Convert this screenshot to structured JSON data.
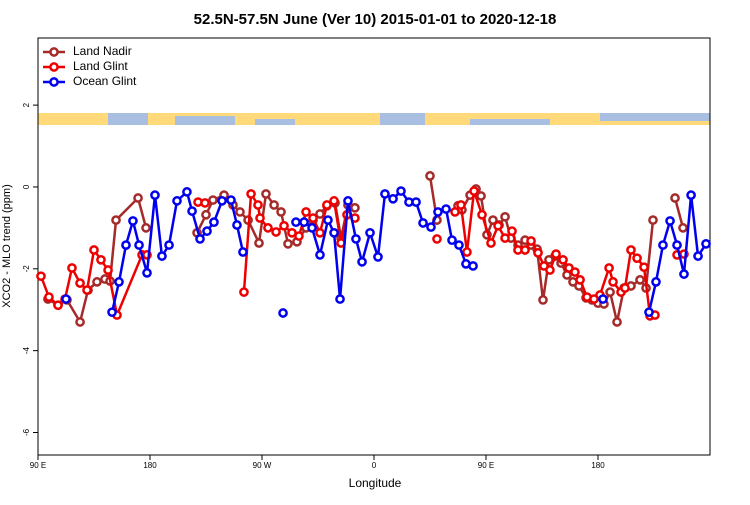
{
  "chart_data": {
    "type": "line",
    "title": "52.5N-57.5N June (Ver 10)   2015-01-01 to 2020-12-18",
    "x_label": "Longitude",
    "y_label": "XCO2 - MLO trend (ppm)",
    "xlim": [
      90,
      630
    ],
    "xticks": [
      {
        "value": 90,
        "label": "90 E"
      },
      {
        "value": 180,
        "label": "180"
      },
      {
        "value": 270,
        "label": "90 W"
      },
      {
        "value": 360,
        "label": "0"
      },
      {
        "value": 450,
        "label": "90 E"
      },
      {
        "value": 540,
        "label": "180"
      }
    ],
    "ylim": [
      -6.55,
      3.64
    ],
    "yticks": [
      2,
      0,
      -2,
      -4,
      -6
    ],
    "legend": "top-left",
    "series": [
      {
        "name": "Land Nadir",
        "color": "#a52a2a",
        "x": [
          98.0,
          106.1,
          113.3,
          123.8,
          130.2,
          137.4,
          143.8,
          147.9,
          152.7,
          170.4,
          176.8,
          null,
          217.8,
          225.0,
          230.6,
          239.5,
          246.7,
          252.3,
          258.8,
          267.6,
          273.2,
          279.7,
          285.3,
          290.9,
          298.1,
          305.4,
          311.0,
          316.6,
          322.2,
          328.7,
          333.5,
          339.1,
          344.7,
          null,
          405.0,
          410.6,
          null,
          427.5,
          430.7,
          437.2,
          442.0,
          446.0,
          450.8,
          455.6,
          460.5,
          465.3,
          470.1,
          475.7,
          481.4,
          486.2,
          491.0,
          495.8,
          500.6,
          505.5,
          510.3,
          515.1,
          519.9,
          524.7,
          530.4,
          535.2,
          540.0,
          544.8,
          549.7,
          555.3,
          560.9,
          566.5,
          573.8,
          578.6,
          584.2,
          null,
          601.9,
          608.3
        ],
        "values": [
          -2.74,
          -2.89,
          -2.76,
          -3.3,
          -2.52,
          -2.32,
          -2.25,
          -2.3,
          -0.81,
          -0.27,
          -1.0,
          null,
          -1.12,
          -0.68,
          -0.32,
          -0.2,
          -0.44,
          -0.61,
          -0.81,
          -1.37,
          -0.17,
          -0.44,
          -0.61,
          -1.39,
          -1.34,
          -1.0,
          -0.81,
          -0.66,
          -0.46,
          -0.39,
          -1.25,
          -0.44,
          -0.51,
          null,
          0.27,
          -0.81,
          null,
          -0.46,
          -0.56,
          -0.2,
          -0.05,
          -0.22,
          -1.17,
          -0.81,
          -0.93,
          -0.73,
          -1.25,
          -1.42,
          -1.3,
          -1.42,
          -1.52,
          -2.76,
          -1.78,
          -1.69,
          -1.86,
          -2.15,
          -2.32,
          -2.42,
          -2.71,
          -2.76,
          -2.84,
          -2.86,
          -2.57,
          -3.3,
          -2.47,
          -2.42,
          -2.27,
          -2.47,
          -0.81,
          null,
          -0.27,
          -1.0
        ]
      },
      {
        "name": "Land Glint",
        "color": "#ee0000",
        "x": [
          92.4,
          98.8,
          106.1,
          111.7,
          117.3,
          123.8,
          129.4,
          135.0,
          140.6,
          146.3,
          153.5,
          173.6,
          177.6,
          null,
          218.6,
          224.2,
          null,
          255.5,
          261.2,
          266.8,
          268.4,
          274.8,
          281.3,
          287.7,
          294.1,
          299.7,
          305.4,
          311.0,
          316.6,
          322.2,
          327.9,
          333.5,
          338.3,
          344.7,
          null,
          410.6,
          null,
          425.1,
          429.9,
          434.7,
          440.4,
          446.8,
          454.0,
          459.7,
          465.3,
          470.9,
          475.7,
          481.4,
          486.2,
          491.8,
          496.6,
          501.4,
          506.3,
          511.9,
          516.7,
          521.5,
          525.6,
          531.2,
          536.8,
          541.6,
          548.9,
          552.1,
          558.5,
          561.7,
          566.5,
          571.4,
          577.0,
          581.8,
          585.8,
          null,
          603.5,
          609.1
        ],
        "values": [
          -2.18,
          -2.69,
          -2.89,
          -2.74,
          -1.98,
          -2.35,
          -2.52,
          -1.54,
          -1.78,
          -2.03,
          -3.13,
          -1.66,
          -1.66,
          null,
          -0.37,
          -0.39,
          null,
          -2.57,
          -0.17,
          -0.44,
          -0.76,
          -1.0,
          -1.1,
          -0.95,
          -1.12,
          -1.2,
          -0.61,
          -0.76,
          -1.12,
          -0.44,
          -0.34,
          -1.37,
          -0.68,
          -0.76,
          null,
          -1.27,
          null,
          -0.61,
          -0.44,
          -1.59,
          -0.1,
          -0.68,
          -1.37,
          -0.95,
          -1.25,
          -1.08,
          -1.54,
          -1.54,
          -1.32,
          -1.61,
          -1.93,
          -2.03,
          -1.64,
          -1.78,
          -1.98,
          -2.08,
          -2.27,
          -2.69,
          -2.74,
          -2.64,
          -1.98,
          -2.32,
          -2.57,
          -2.47,
          -1.54,
          -1.74,
          -1.96,
          -3.15,
          -3.13,
          null,
          -1.66,
          -1.64
        ]
      },
      {
        "name": "Ocean Glint",
        "color": "#0000ee",
        "x": [
          112.5,
          null,
          149.5,
          155.1,
          160.7,
          166.3,
          171.2,
          177.6,
          184.0,
          189.6,
          195.3,
          201.7,
          209.7,
          213.8,
          220.2,
          225.8,
          231.4,
          237.9,
          245.1,
          249.9,
          254.7,
          null,
          286.9,
          null,
          297.3,
          303.8,
          310.2,
          316.6,
          323.0,
          327.9,
          332.7,
          339.1,
          345.5,
          350.4,
          356.8,
          363.2,
          368.8,
          375.3,
          381.7,
          388.1,
          393.8,
          399.4,
          405.8,
          411.4,
          417.9,
          422.7,
          428.3,
          433.9,
          439.6,
          null,
          544.0,
          null,
          581.0,
          586.6,
          592.2,
          597.9,
          603.5,
          609.1,
          614.8,
          620.4,
          626.8
        ],
        "values": [
          -2.74,
          null,
          -3.06,
          -2.32,
          -1.42,
          -0.83,
          -1.42,
          -2.1,
          -0.2,
          -1.69,
          -1.42,
          -0.34,
          -0.12,
          -0.59,
          -1.27,
          -1.08,
          -0.86,
          -0.34,
          -0.32,
          -0.93,
          -1.59,
          null,
          -3.08,
          null,
          -0.86,
          -0.86,
          -1.0,
          -1.66,
          -0.81,
          -1.12,
          -2.74,
          -0.34,
          -1.27,
          -1.83,
          -1.12,
          -1.71,
          -0.17,
          -0.29,
          -0.1,
          -0.37,
          -0.37,
          -0.88,
          -0.98,
          -0.61,
          -0.54,
          -1.3,
          -1.42,
          -1.88,
          -1.93,
          null,
          -2.74,
          null,
          -3.06,
          -2.32,
          -1.42,
          -0.83,
          -1.42,
          -2.13,
          -0.2,
          -1.69,
          -1.39
        ]
      }
    ]
  }
}
